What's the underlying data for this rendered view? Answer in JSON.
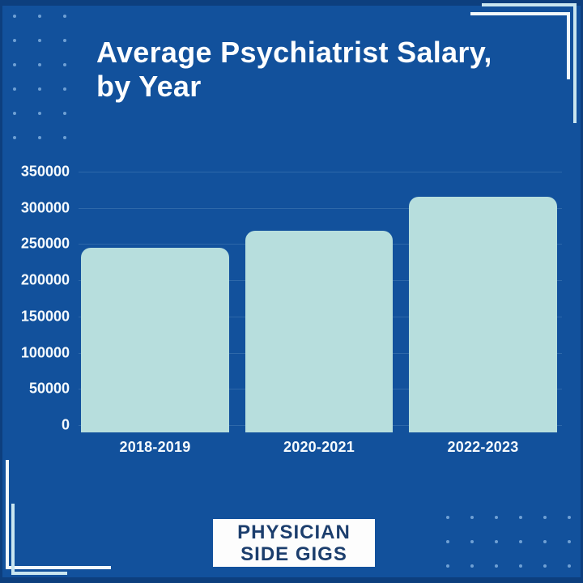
{
  "title": {
    "line1": "Average Psychiatrist Salary,",
    "line2": "by Year"
  },
  "chart_data": {
    "type": "bar",
    "title": "Average Psychiatrist Salary, by Year",
    "categories": [
      "2018-2019",
      "2020-2021",
      "2022-2023"
    ],
    "values": [
      245000,
      268000,
      315000
    ],
    "y_ticks": [
      0,
      50000,
      100000,
      150000,
      200000,
      250000,
      300000,
      350000
    ],
    "ylim": [
      0,
      350000
    ],
    "xlabel": "",
    "ylabel": "",
    "legend": false,
    "grid": true
  },
  "footer": {
    "logo_line1": "PHYSICIAN",
    "logo_line2": "SIDE GIGS"
  },
  "colors": {
    "background": "#12519c",
    "edge": "#0d3f7e",
    "bar": "#b7dedd",
    "axis_text": "#f5fafd",
    "title_text": "#fdfeff",
    "logo_background": "#fdfdfd",
    "logo_text": "#1c3e6d",
    "dots": "#7aa8da",
    "bracket_white": "#f2f9fb",
    "bracket_cyan": "#c9e6f0"
  }
}
